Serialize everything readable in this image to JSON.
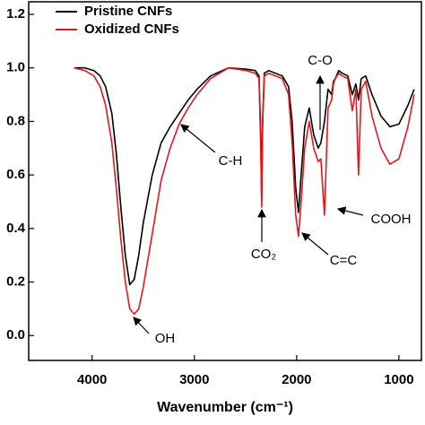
{
  "chart_data": {
    "type": "line",
    "x_label": "Wavenumber (cm⁻¹)",
    "x": [
      4175,
      4070,
      3982,
      3921,
      3868,
      3807,
      3763,
      3719,
      3675,
      3632,
      3588,
      3544,
      3500,
      3412,
      3325,
      3237,
      3149,
      3061,
      2974,
      2842,
      2667,
      2491,
      2404,
      2368,
      2351,
      2342,
      2333,
      2316,
      2272,
      2140,
      2079,
      2044,
      2009,
      1982,
      1956,
      1921,
      1877,
      1833,
      1789,
      1763,
      1728,
      1693,
      1658,
      1640,
      1623,
      1588,
      1553,
      1500,
      1456,
      1421,
      1395,
      1368,
      1325,
      1263,
      1175,
      1088,
      1000,
      912,
      851
    ],
    "series": [
      {
        "name": "Pristine CNFs",
        "color": "#000000",
        "values": [
          1.0,
          1.0,
          0.99,
          0.97,
          0.93,
          0.83,
          0.68,
          0.48,
          0.3,
          0.19,
          0.21,
          0.3,
          0.42,
          0.6,
          0.72,
          0.78,
          0.83,
          0.88,
          0.92,
          0.97,
          1.0,
          0.995,
          0.99,
          0.97,
          0.75,
          0.5,
          0.8,
          0.98,
          0.99,
          0.97,
          0.93,
          0.8,
          0.55,
          0.46,
          0.6,
          0.78,
          0.85,
          0.75,
          0.7,
          0.72,
          0.8,
          0.92,
          0.9,
          0.95,
          0.96,
          0.99,
          0.98,
          0.97,
          0.9,
          0.94,
          0.88,
          0.96,
          0.97,
          0.9,
          0.82,
          0.78,
          0.79,
          0.86,
          0.92
        ]
      },
      {
        "name": "Oxidized CNFs",
        "color": "#e8141e",
        "values": [
          1.0,
          0.99,
          0.97,
          0.93,
          0.86,
          0.72,
          0.55,
          0.36,
          0.2,
          0.1,
          0.08,
          0.1,
          0.18,
          0.38,
          0.58,
          0.7,
          0.79,
          0.85,
          0.9,
          0.96,
          1.0,
          0.99,
          0.98,
          0.96,
          0.7,
          0.48,
          0.78,
          0.97,
          0.98,
          0.96,
          0.9,
          0.72,
          0.45,
          0.37,
          0.5,
          0.7,
          0.8,
          0.7,
          0.65,
          0.66,
          0.45,
          0.85,
          0.88,
          0.94,
          0.96,
          0.98,
          0.97,
          0.96,
          0.84,
          0.92,
          0.6,
          0.92,
          0.95,
          0.82,
          0.7,
          0.64,
          0.66,
          0.78,
          0.9
        ]
      }
    ],
    "xlim": [
      4620,
      780
    ],
    "xticks": [
      4000,
      3000,
      2000,
      1000
    ],
    "ylim": [
      -0.093,
      1.247
    ],
    "yticks": [
      {
        "value": 0,
        "label": "0.0"
      },
      0.2,
      0.4,
      0.6,
      0.8,
      {
        "value": 1,
        "label": "1.0"
      },
      1.2
    ],
    "legend": "upper left",
    "annotations": [
      "C-O",
      "C-H",
      "CO₂",
      "C=C",
      "COOH",
      "OH"
    ]
  }
}
